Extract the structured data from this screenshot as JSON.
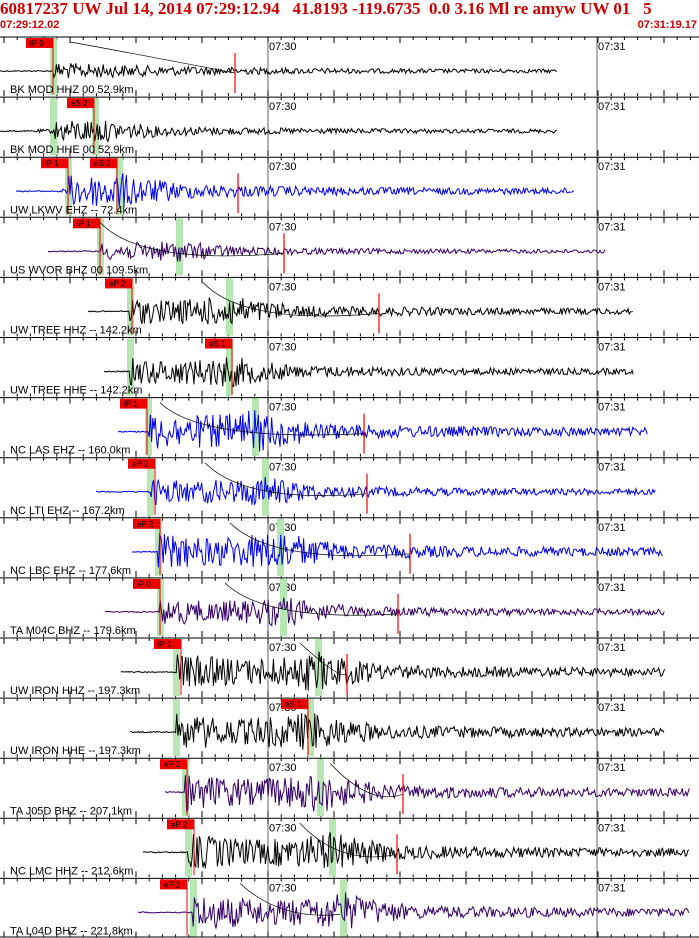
{
  "header": {
    "title": "60817237 UW Jul 14, 2014 07:29:12.94   41.8193 -119.6735  0.0 3.16 Ml re amyw UW 01   5",
    "time_start": "07:29:12.02",
    "time_end": "07:31:19.17"
  },
  "time_labels": [
    "07:30",
    "07:31"
  ],
  "colors": {
    "pick_red": "#ee0000",
    "phase_green": "#b6e6b2",
    "trace_black": "#000000",
    "trace_blue": "#0000ee",
    "trace_purple": "#330066",
    "theory_curve": "#000000"
  },
  "traces": [
    {
      "label": "BK MOD HHZ 00 52.9km",
      "color": "#000000",
      "picks": [
        "iP 0"
      ],
      "amp": "low"
    },
    {
      "label": "BK MOD HHE 00 52.9km",
      "color": "#000000",
      "picks": [
        "eS 2"
      ],
      "amp": "low"
    },
    {
      "label": "UW LKWV EHZ -- 72.4km",
      "color": "#0000ee",
      "picks": [
        "iP 1",
        "eS 2"
      ],
      "amp": "med"
    },
    {
      "label": "US WVOR BHZ 00 109.5km",
      "color": "#330066",
      "picks": [
        "iP 1"
      ],
      "amp": "low"
    },
    {
      "label": "UW TREE HHZ -- 142.2km",
      "color": "#000000",
      "picks": [
        "eP 2"
      ],
      "amp": "med"
    },
    {
      "label": "UW TREE HHE -- 142.2km",
      "color": "#000000",
      "picks": [
        "eS 1"
      ],
      "amp": "med"
    },
    {
      "label": "NC LAS EHZ -- 160.0km",
      "color": "#0000ee",
      "picks": [
        "iP 1"
      ],
      "amp": "high"
    },
    {
      "label": "NC LTI EHZ -- 167.2km",
      "color": "#0000ee",
      "picks": [
        "eP 2"
      ],
      "amp": "med"
    },
    {
      "label": "NC LBC EHZ -- 177.6km",
      "color": "#0000ee",
      "picks": [
        "eP 2"
      ],
      "amp": "high"
    },
    {
      "label": "TA M04C BHZ -- 179.6km",
      "color": "#330066",
      "picks": [
        "iP 0"
      ],
      "amp": "med"
    },
    {
      "label": "UW IRON HHZ -- 197.3km",
      "color": "#000000",
      "picks": [
        "iP 1"
      ],
      "amp": "high"
    },
    {
      "label": "UW IRON HHE -- 197.3km",
      "color": "#000000",
      "picks": [
        "eS 1"
      ],
      "amp": "high"
    },
    {
      "label": "TA J05D BHZ -- 207.1km",
      "color": "#330066",
      "picks": [
        "eP 2"
      ],
      "amp": "high"
    },
    {
      "label": "NC LMC HHZ -- 212.6km",
      "color": "#000000",
      "picks": [
        "eP 2"
      ],
      "amp": "high"
    },
    {
      "label": "TA L04D BHZ -- 221.8km",
      "color": "#330066",
      "picks": [
        "eP 2"
      ],
      "amp": "high"
    }
  ]
}
